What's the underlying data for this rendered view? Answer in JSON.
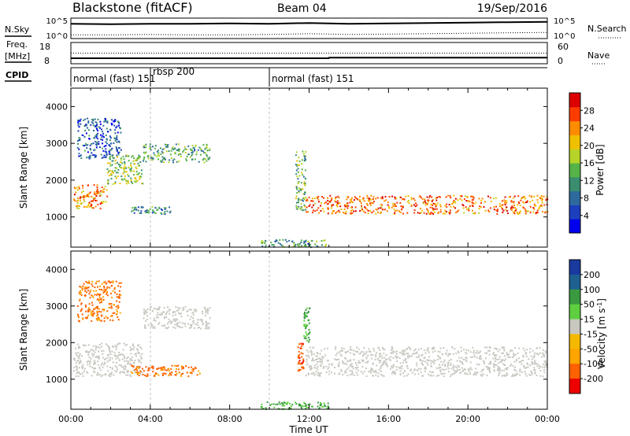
{
  "header": {
    "station": "Blackstone (fitACF)",
    "beam": "Beam 04",
    "date": "19/Sep/2016"
  },
  "side_labels": {
    "nsky": "N.Sky",
    "nsearch": "N.Search",
    "freq_line1": "Freq.",
    "freq_line2": "[MHz]",
    "nave": "Nave",
    "cpid": "CPID"
  },
  "cpid_labels": [
    "normal (fast) 151",
    "rbsp 200",
    "normal (fast) 151"
  ],
  "colors": {
    "power_scale": [
      "#0000ee",
      "#1c3fbe",
      "#2e6a9e",
      "#3a8e6e",
      "#56b348",
      "#b6d428",
      "#f0c000",
      "#ff8c00",
      "#ff3c00",
      "#dd0000"
    ],
    "velocity_scale": [
      "#ee0000",
      "#ff6000",
      "#ffa500",
      "#f5b800",
      "#c8c8c0",
      "#5ed040",
      "#3a9a40",
      "#1e6090",
      "#1a3aa0"
    ],
    "ground_scatter": "#c8c8c0"
  },
  "chart_data": [
    {
      "type": "line",
      "name": "noise-panel",
      "ylabel_left": "N.Sky",
      "ylabel_right": "N.Search",
      "left_ticks": [
        "10^5",
        "10^0"
      ],
      "right_ticks": [
        "10^5",
        "10^0"
      ],
      "xlim": [
        0,
        24
      ],
      "series": [
        {
          "name": "N.Sky",
          "x": [
            0,
            2,
            4,
            6,
            8,
            10,
            12,
            14,
            16,
            18,
            20,
            22,
            24
          ],
          "y": [
            3.6,
            3.5,
            3.6,
            3.6,
            3.7,
            3.6,
            3.8,
            3.6,
            3.7,
            3.8,
            3.9,
            4.0,
            4.1
          ]
        },
        {
          "name": "N.Search",
          "x": [
            0,
            2,
            4,
            6,
            8,
            10,
            12,
            14,
            16,
            18,
            20,
            22,
            24
          ],
          "y": [
            0.9,
            0.9,
            1.0,
            0.9,
            0.9,
            1.0,
            1.2,
            1.0,
            1.1,
            1.2,
            1.3,
            1.4,
            1.5
          ]
        }
      ]
    },
    {
      "type": "line",
      "name": "frequency-panel",
      "ylabel_left": "Freq. [MHz]",
      "ylabel_right": "Nave",
      "left_ticks": [
        "18",
        "8"
      ],
      "right_ticks": [
        "60",
        "0"
      ],
      "xlim": [
        0,
        24
      ],
      "series": [
        {
          "name": "Freq",
          "x": [
            0,
            13,
            13.01,
            24
          ],
          "y": [
            10.6,
            10.6,
            10.9,
            10.9
          ]
        },
        {
          "name": "Nave",
          "x": [
            0,
            24
          ],
          "y": [
            30,
            30
          ]
        }
      ]
    },
    {
      "type": "table",
      "name": "cpid-panel",
      "segments": [
        {
          "start": 0,
          "end": 4,
          "label": "normal (fast) 151"
        },
        {
          "start": 4,
          "end": 10,
          "label": "rbsp 200"
        },
        {
          "start": 10,
          "end": 24,
          "label": "normal (fast) 151"
        }
      ]
    },
    {
      "type": "heatmap",
      "name": "power-panel",
      "ylabel": "Slant Range [km]",
      "xlim": [
        0,
        24
      ],
      "ylim": [
        180,
        4500
      ],
      "yticks": [
        1000,
        2000,
        3000,
        4000
      ],
      "colorbar": {
        "label": "Power [dB]",
        "ticks": [
          4,
          8,
          12,
          16,
          20,
          24,
          28
        ],
        "range": [
          0,
          32
        ]
      },
      "bands": [
        {
          "t0": 0.1,
          "t1": 1.8,
          "r0": 1250,
          "r1": 1900,
          "level": 24
        },
        {
          "t0": 1.8,
          "t1": 3.6,
          "r0": 1900,
          "r1": 2700,
          "level": 16
        },
        {
          "t0": 0.3,
          "t1": 2.5,
          "r0": 2600,
          "r1": 3700,
          "level": 6
        },
        {
          "t0": 3.6,
          "t1": 7.0,
          "r0": 2500,
          "r1": 3000,
          "level": 12
        },
        {
          "t0": 3.0,
          "t1": 5.0,
          "r0": 1100,
          "r1": 1300,
          "level": 10
        },
        {
          "t0": 11.3,
          "t1": 11.8,
          "r0": 1200,
          "r1": 2800,
          "level": 14
        },
        {
          "t0": 11.8,
          "t1": 24.0,
          "r0": 1100,
          "r1": 1600,
          "level": 26
        },
        {
          "t0": 9.5,
          "t1": 13.0,
          "r0": 200,
          "r1": 400,
          "level": 12
        }
      ]
    },
    {
      "type": "heatmap",
      "name": "velocity-panel",
      "ylabel": "Slant Range [km]",
      "xlim": [
        0,
        24
      ],
      "ylim": [
        180,
        4500
      ],
      "yticks": [
        1000,
        2000,
        3000,
        4000
      ],
      "colorbar": {
        "label": "Velocity [m s^-1]",
        "ticks": [
          200,
          100,
          50,
          15,
          -15,
          -50,
          -100,
          -200
        ]
      },
      "bands": [
        {
          "t0": 0.1,
          "t1": 3.6,
          "r0": 1100,
          "r1": 2000,
          "velocity": 0
        },
        {
          "t0": 0.3,
          "t1": 2.5,
          "r0": 2600,
          "r1": 3700,
          "velocity": -60
        },
        {
          "t0": 3.6,
          "t1": 7.0,
          "r0": 2400,
          "r1": 3000,
          "velocity": 0
        },
        {
          "t0": 3.0,
          "t1": 6.5,
          "r0": 1100,
          "r1": 1400,
          "velocity": -60
        },
        {
          "t0": 11.4,
          "t1": 11.7,
          "r0": 1200,
          "r1": 2000,
          "velocity": -80
        },
        {
          "t0": 11.7,
          "t1": 12.0,
          "r0": 2000,
          "r1": 3000,
          "velocity": 60
        },
        {
          "t0": 11.8,
          "t1": 24.0,
          "r0": 1100,
          "r1": 1900,
          "velocity": 0
        },
        {
          "t0": 9.5,
          "t1": 13.0,
          "r0": 200,
          "r1": 400,
          "velocity": 60
        }
      ]
    }
  ],
  "x_axis": {
    "ticks": [
      "00:00",
      "04:00",
      "08:00",
      "12:00",
      "16:00",
      "20:00",
      "00:00"
    ],
    "label": "Time UT"
  }
}
